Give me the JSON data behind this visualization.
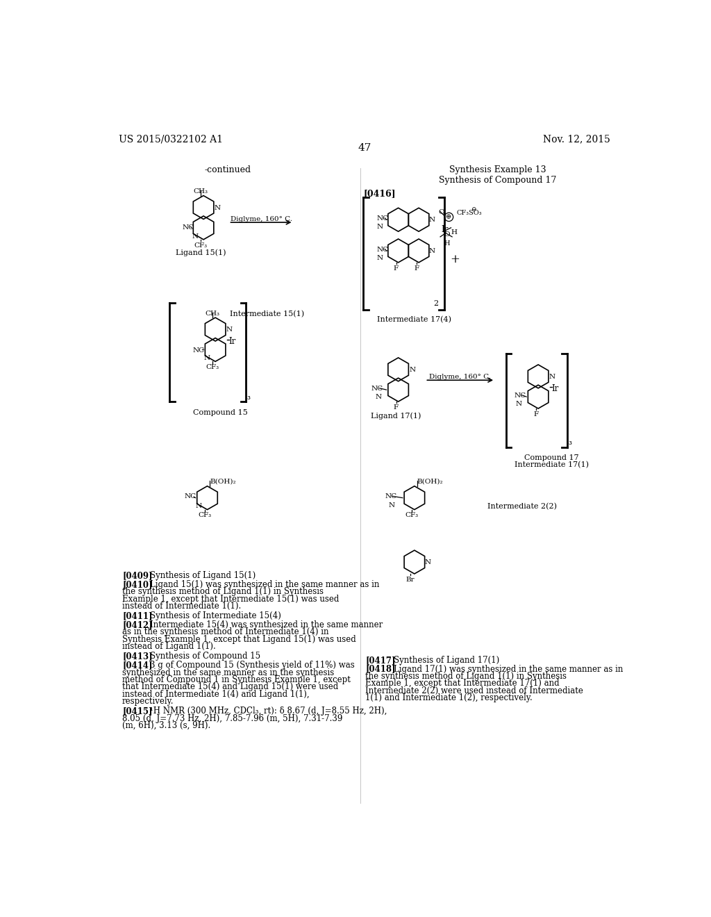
{
  "page_num": "47",
  "patent_left": "US 2015/0322102 A1",
  "patent_right": "Nov. 12, 2015",
  "bg_color": "#ffffff",
  "text_color": "#000000",
  "continued_label": "-continued",
  "synthesis_example_13": "Synthesis Example 13",
  "synthesis_compound_17": "Synthesis of Compound 17",
  "ref_0416": "[0416]",
  "para_0409_title": "Synthesis of Ligand 15(1)",
  "para_0410_text": "Ligand 15(1) was synthesized in the same manner as in the synthesis method of Ligand 1(1) in Synthesis Example 1, except that Intermediate 15(1) was used instead of Intermediate 1(1).",
  "para_0411_title": "Synthesis of Intermediate 15(4)",
  "para_0412_text": "Intermediate 15(4) was synthesized in the same manner as in the synthesis method of Intermediate 1(4) in Synthesis Example 1, except that Ligand 15(1) was used instead of Ligand 1(1).",
  "para_0413_title": "Synthesis of Compound 15",
  "para_0414_text": "3 g of Compound 15 (Synthesis yield of 11%) was synthesized in the same manner as in the synthesis method of Compound 1 in Synthesis Example 1, except that Intermediate 15(4) and Ligand 15(1) were used instead of Intermediate 1(4) and Ligand 1(1), respectively.",
  "para_0415_text": "¹H NMR (300 MHz, CDCl₃, rt): δ 8.67 (d, J=8.55 Hz, 2H), 8.05 (d, J=7.73 Hz, 2H), 7.85-7.96 (m, 5H), 7.31-7.39 (m, 6H), 3.13 (s, 9H).",
  "para_0417_title": "Synthesis of Ligand 17(1)",
  "para_0418_text": "Ligand 17(1) was synthesized in the same manner as in the synthesis method of Ligand 1(1) in Synthesis Example 1, except that Intermediate 17(1) and Intermediate 2(2) were used instead of Intermediate 1(1) and Intermediate 1(2), respectively."
}
